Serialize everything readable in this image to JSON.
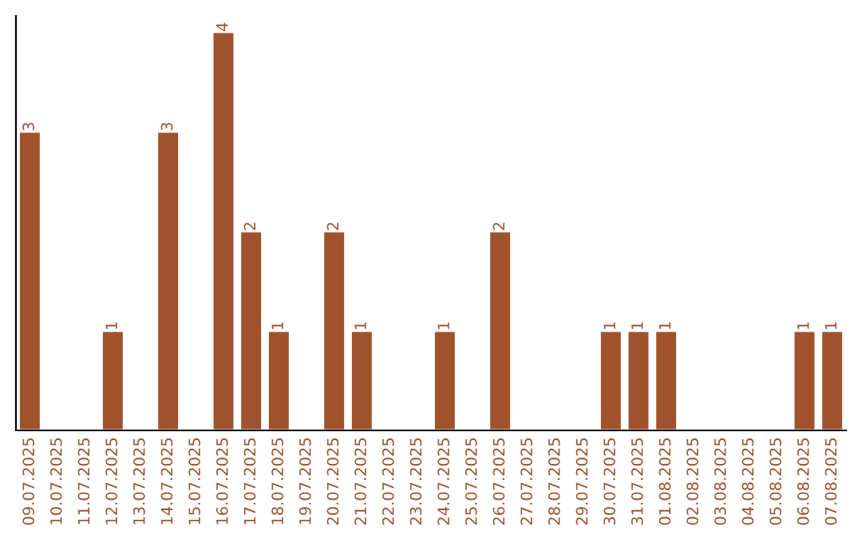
{
  "chart_data": {
    "type": "bar",
    "categories": [
      "09.07.2025",
      "10.07.2025",
      "11.07.2025",
      "12.07.2025",
      "13.07.2025",
      "14.07.2025",
      "15.07.2025",
      "16.07.2025",
      "17.07.2025",
      "18.07.2025",
      "19.07.2025",
      "20.07.2025",
      "21.07.2025",
      "22.07.2025",
      "23.07.2025",
      "24.07.2025",
      "25.07.2025",
      "26.07.2025",
      "27.07.2025",
      "28.07.2025",
      "29.07.2025",
      "30.07.2025",
      "31.07.2025",
      "01.08.2025",
      "02.08.2025",
      "03.08.2025",
      "04.08.2025",
      "05.08.2025",
      "06.08.2025",
      "07.08.2025"
    ],
    "values": [
      3,
      null,
      null,
      1,
      null,
      3,
      null,
      4,
      2,
      1,
      null,
      2,
      1,
      null,
      null,
      1,
      null,
      2,
      null,
      null,
      null,
      1,
      1,
      1,
      null,
      null,
      null,
      null,
      1,
      1
    ],
    "value_labels": [
      "3",
      null,
      null,
      "1",
      null,
      "3",
      null,
      "4",
      "2",
      "1",
      null,
      "2",
      "1",
      null,
      null,
      "1",
      null,
      "2",
      null,
      null,
      null,
      "1",
      "1",
      "1",
      null,
      null,
      null,
      null,
      "1",
      "1"
    ],
    "color": "#a0522d",
    "tick_labels": "x",
    "grid": false,
    "legend": false
  }
}
